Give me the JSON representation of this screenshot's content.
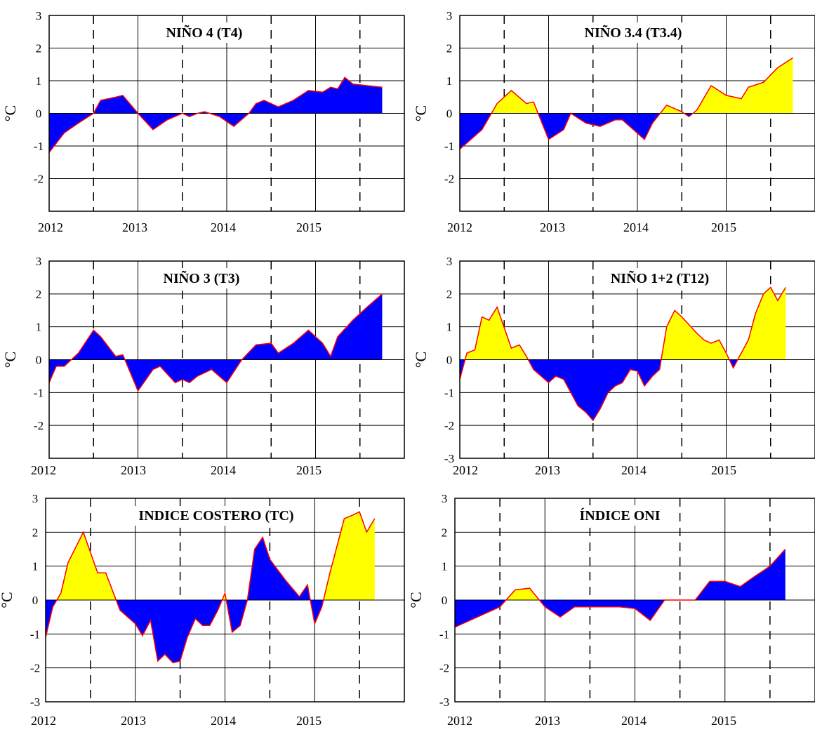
{
  "figure": {
    "ylabel": "°C",
    "xtick_labels": [
      "2012",
      "2013",
      "2014",
      "2015"
    ],
    "colors": {
      "positive_fill": "#ffff00",
      "negative_fill": "#0000ff",
      "line": "#ff0000",
      "axes": "#000000"
    }
  },
  "chart_data": [
    {
      "type": "area",
      "title": "NIÑO 4 (T4)",
      "ylabel": "°C",
      "xlim": [
        2012,
        2016
      ],
      "ylim": [
        -3,
        3
      ],
      "yticks": [
        3,
        2,
        1,
        0,
        -1,
        -2
      ],
      "xticks": [
        "2012",
        "2013",
        "2014",
        "2015"
      ],
      "grid": true,
      "x": [
        2012.0,
        2012.17,
        2012.33,
        2012.5,
        2012.58,
        2012.75,
        2012.83,
        2013.0,
        2013.17,
        2013.33,
        2013.5,
        2013.58,
        2013.67,
        2013.75,
        2013.92,
        2014.08,
        2014.25,
        2014.33,
        2014.42,
        2014.58,
        2014.75,
        2014.92,
        2015.08,
        2015.17,
        2015.25,
        2015.33,
        2015.42,
        2015.58,
        2015.75
      ],
      "y": [
        -1.2,
        -0.6,
        -0.3,
        0.0,
        0.4,
        0.5,
        0.55,
        0.0,
        -0.5,
        -0.2,
        0.0,
        -0.1,
        0.0,
        0.05,
        -0.1,
        -0.4,
        0.0,
        0.3,
        0.4,
        0.2,
        0.4,
        0.7,
        0.65,
        0.8,
        0.75,
        1.1,
        0.9,
        0.85,
        0.8
      ]
    },
    {
      "type": "area",
      "title": "NIÑO 3.4 (T3.4)",
      "ylabel": "°C",
      "xlim": [
        2012,
        2016
      ],
      "ylim": [
        -3,
        3
      ],
      "yticks": [
        3,
        2,
        1,
        0,
        -1,
        -2
      ],
      "xticks": [
        "2012",
        "2013",
        "2014",
        "2015"
      ],
      "grid": true,
      "x": [
        2012.0,
        2012.25,
        2012.42,
        2012.58,
        2012.75,
        2012.83,
        2013.0,
        2013.17,
        2013.25,
        2013.42,
        2013.58,
        2013.75,
        2013.83,
        2014.08,
        2014.17,
        2014.33,
        2014.5,
        2014.58,
        2014.67,
        2014.83,
        2015.0,
        2015.17,
        2015.25,
        2015.42,
        2015.58,
        2015.75
      ],
      "y": [
        -1.1,
        -0.5,
        0.3,
        0.7,
        0.3,
        0.35,
        -0.8,
        -0.5,
        0.0,
        -0.3,
        -0.4,
        -0.2,
        -0.2,
        -0.8,
        -0.3,
        0.25,
        0.05,
        -0.1,
        0.1,
        0.85,
        0.55,
        0.45,
        0.8,
        0.95,
        1.4,
        1.7
      ]
    },
    {
      "type": "area",
      "title": "NIÑO 3 (T3)",
      "ylabel": "°C",
      "xlim": [
        2012,
        2016
      ],
      "ylim": [
        -3,
        3
      ],
      "yticks": [
        3,
        2,
        1,
        0,
        -1,
        -2
      ],
      "xticks": [
        "2012",
        "2013",
        "2014",
        "2015"
      ],
      "grid": true,
      "x": [
        2012.0,
        2012.08,
        2012.17,
        2012.25,
        2012.33,
        2012.5,
        2012.58,
        2012.75,
        2012.83,
        2013.0,
        2013.17,
        2013.25,
        2013.42,
        2013.5,
        2013.58,
        2013.67,
        2013.83,
        2014.0,
        2014.17,
        2014.33,
        2014.5,
        2014.58,
        2014.75,
        2014.92,
        2015.08,
        2015.17,
        2015.25,
        2015.42,
        2015.58,
        2015.75
      ],
      "y": [
        -0.7,
        -0.2,
        -0.2,
        0.0,
        0.2,
        0.9,
        0.7,
        0.1,
        0.15,
        -0.95,
        -0.3,
        -0.2,
        -0.7,
        -0.6,
        -0.7,
        -0.5,
        -0.3,
        -0.7,
        0.0,
        0.45,
        0.5,
        0.2,
        0.5,
        0.9,
        0.5,
        0.1,
        0.7,
        1.2,
        1.6,
        2.0
      ]
    },
    {
      "type": "area",
      "title": "NIÑO 1+2 (T12)",
      "ylabel": "°C",
      "xlim": [
        2012,
        2016
      ],
      "ylim": [
        -3,
        3
      ],
      "yticks": [
        3,
        2,
        1,
        0,
        -1,
        -2,
        -3
      ],
      "xticks": [
        "2012",
        "2013",
        "2014",
        "2015"
      ],
      "grid": true,
      "x": [
        2012.0,
        2012.08,
        2012.17,
        2012.25,
        2012.33,
        2012.42,
        2012.58,
        2012.67,
        2012.75,
        2012.83,
        2013.0,
        2013.08,
        2013.17,
        2013.25,
        2013.33,
        2013.42,
        2013.5,
        2013.58,
        2013.67,
        2013.75,
        2013.83,
        2013.92,
        2014.0,
        2014.08,
        2014.17,
        2014.25,
        2014.33,
        2014.42,
        2014.5,
        2014.67,
        2014.75,
        2014.83,
        2014.92,
        2015.0,
        2015.08,
        2015.17,
        2015.25,
        2015.33,
        2015.42,
        2015.5,
        2015.58,
        2015.67
      ],
      "y": [
        -0.6,
        0.2,
        0.3,
        1.3,
        1.2,
        1.6,
        0.35,
        0.45,
        0.1,
        -0.3,
        -0.7,
        -0.5,
        -0.6,
        -1.0,
        -1.4,
        -1.6,
        -1.85,
        -1.5,
        -1.0,
        -0.8,
        -0.7,
        -0.3,
        -0.35,
        -0.8,
        -0.5,
        -0.3,
        1.0,
        1.5,
        1.3,
        0.8,
        0.6,
        0.5,
        0.6,
        0.2,
        -0.25,
        0.2,
        0.6,
        1.4,
        2.0,
        2.2,
        1.8,
        2.2
      ]
    },
    {
      "type": "area",
      "title": "INDICE COSTERO (TC)",
      "ylabel": "°C",
      "xlim": [
        2012,
        2016
      ],
      "ylim": [
        -3,
        3
      ],
      "yticks": [
        3,
        2,
        1,
        0,
        -1,
        -2,
        -3
      ],
      "xticks": [
        "2012",
        "2013",
        "2014",
        "2015"
      ],
      "grid": true,
      "x": [
        2012.0,
        2012.08,
        2012.17,
        2012.25,
        2012.42,
        2012.58,
        2012.67,
        2012.83,
        2013.0,
        2013.08,
        2013.17,
        2013.25,
        2013.33,
        2013.42,
        2013.5,
        2013.58,
        2013.67,
        2013.75,
        2013.83,
        2013.92,
        2014.0,
        2014.08,
        2014.17,
        2014.25,
        2014.33,
        2014.42,
        2014.5,
        2014.67,
        2014.83,
        2014.92,
        2015.0,
        2015.08,
        2015.17,
        2015.33,
        2015.42,
        2015.5,
        2015.58,
        2015.67
      ],
      "y": [
        -1.1,
        -0.2,
        0.2,
        1.1,
        2.0,
        0.8,
        0.8,
        -0.3,
        -0.7,
        -1.05,
        -0.6,
        -1.8,
        -1.6,
        -1.85,
        -1.8,
        -1.1,
        -0.55,
        -0.75,
        -0.75,
        -0.3,
        0.2,
        -0.95,
        -0.75,
        0.0,
        1.5,
        1.85,
        1.2,
        0.6,
        0.1,
        0.45,
        -0.7,
        -0.2,
        0.8,
        2.4,
        2.5,
        2.6,
        2.0,
        2.4
      ]
    },
    {
      "type": "area",
      "title": "ÍNDICE ONI",
      "ylabel": "°C",
      "xlim": [
        2012,
        2016
      ],
      "ylim": [
        -3,
        3
      ],
      "yticks": [
        3,
        2,
        1,
        0,
        -1,
        -2,
        -3
      ],
      "xticks": [
        "2012",
        "2013",
        "2014",
        "2015"
      ],
      "grid": true,
      "x": [
        2012.0,
        2012.5,
        2012.67,
        2012.83,
        2013.0,
        2013.17,
        2013.33,
        2013.5,
        2013.67,
        2013.83,
        2014.0,
        2014.17,
        2014.33,
        2014.5,
        2014.67,
        2014.83,
        2015.0,
        2015.17,
        2015.33,
        2015.5,
        2015.67
      ],
      "y": [
        -0.8,
        -0.2,
        0.3,
        0.35,
        -0.2,
        -0.5,
        -0.2,
        -0.2,
        -0.2,
        -0.2,
        -0.25,
        -0.6,
        0.0,
        0.0,
        0.0,
        0.55,
        0.55,
        0.4,
        0.7,
        1.0,
        1.5
      ]
    }
  ]
}
